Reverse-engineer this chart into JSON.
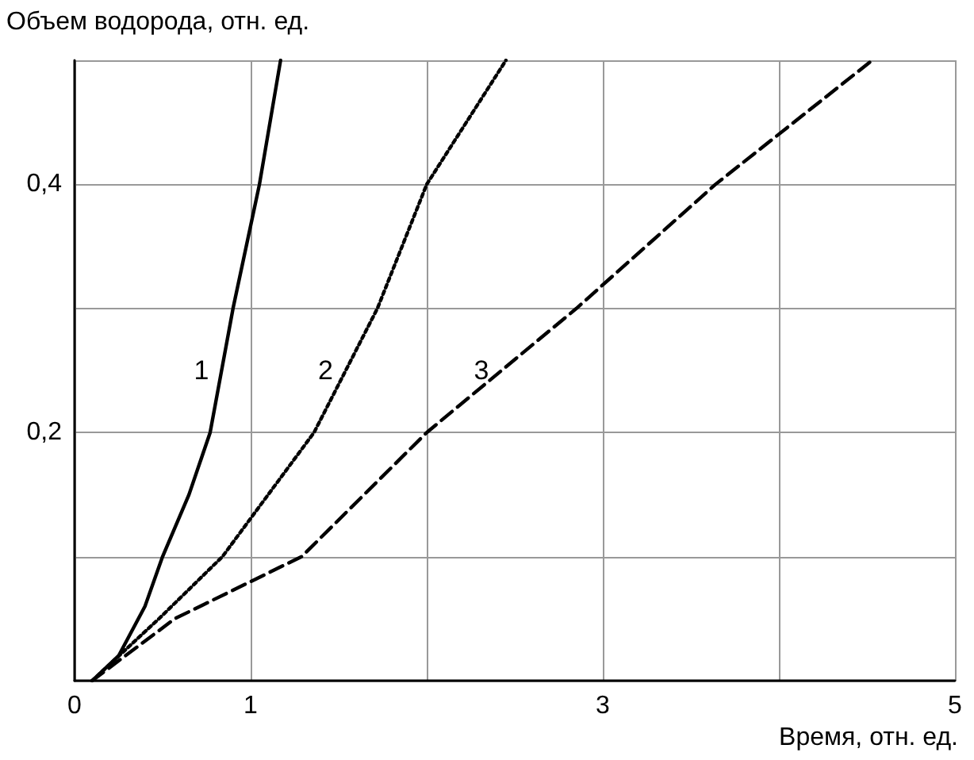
{
  "chart_data": {
    "type": "line",
    "xlabel": "Время, отн. ед.",
    "ylabel": "Объем водорода, отн. ед.",
    "xlim": [
      0,
      5
    ],
    "ylim": [
      0,
      0.5
    ],
    "xticks": [
      0,
      1,
      {
        "value": 2,
        "label": null
      },
      3,
      {
        "value": 4,
        "label": null
      },
      5
    ],
    "yticks": [
      {
        "value": 0,
        "label": null
      },
      {
        "value": 0.1,
        "label": null
      },
      {
        "value": 0.2,
        "label": "0,2"
      },
      {
        "value": 0.3,
        "label": null
      },
      {
        "value": 0.4,
        "label": "0,4"
      },
      {
        "value": 0.5,
        "label": null
      }
    ],
    "grid": true,
    "marker": "none",
    "series": [
      {
        "color": "#000000",
        "line_style": "solid",
        "x": [
          0.1,
          0.25,
          0.4,
          0.5,
          0.65,
          0.77,
          0.9,
          1.05,
          1.17
        ],
        "values": [
          0,
          0.02,
          0.06,
          0.1,
          0.15,
          0.2,
          0.3,
          0.4,
          0.5
        ]
      },
      {
        "color": "#000000",
        "line_style": "dotted",
        "x": [
          0.1,
          0.48,
          0.84,
          1.1,
          1.36,
          1.72,
          2.0,
          2.45
        ],
        "values": [
          0,
          0.05,
          0.1,
          0.15,
          0.2,
          0.3,
          0.4,
          0.5
        ]
      },
      {
        "color": "#000000",
        "line_style": "dashed",
        "x": [
          0.1,
          0.57,
          1.29,
          2.0,
          2.85,
          3.64,
          4.53
        ],
        "values": [
          0,
          0.05,
          0.1,
          0.2,
          0.3,
          0.4,
          0.5
        ]
      }
    ],
    "annotations": [
      "1",
      "2",
      "3"
    ]
  }
}
